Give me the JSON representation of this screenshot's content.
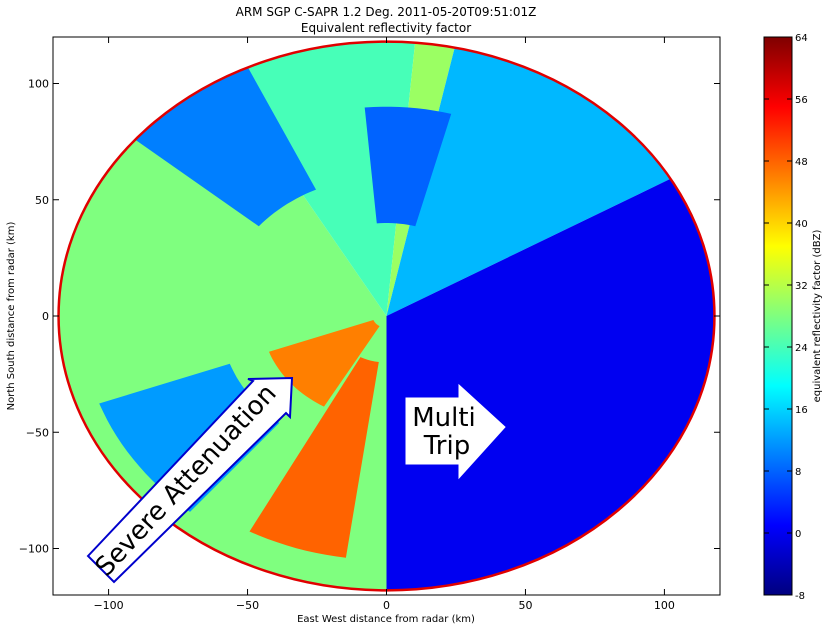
{
  "chart_data": {
    "type": "heatmap",
    "title": "ARM SGP C-SAPR 1.2 Deg. 2011-05-20T09:51:01Z",
    "subtitle": "Equivalent reflectivity factor",
    "xlabel": "East West distance from radar (km)",
    "ylabel": "North South distance from radar (km)",
    "xlim": [
      -120,
      120
    ],
    "ylim": [
      -120,
      120
    ],
    "x_ticks": [
      -100,
      -50,
      0,
      50,
      100
    ],
    "y_ticks": [
      -100,
      -50,
      0,
      50,
      100
    ],
    "x_tick_labels": [
      "−100",
      "−50",
      "0",
      "50",
      "100"
    ],
    "y_tick_labels": [
      "−100",
      "−50",
      "0",
      "50",
      "100"
    ],
    "range_km": 118,
    "colorbar": {
      "label": "equivalent reflectivity factor (dBZ)",
      "min": -8,
      "max": 64,
      "ticks": [
        -8,
        0,
        8,
        16,
        24,
        32,
        40,
        48,
        56,
        64
      ],
      "colormap": "jet",
      "colors": [
        "#00007f",
        "#0000ff",
        "#007fff",
        "#00ffff",
        "#7fff7f",
        "#ffff00",
        "#ff7f00",
        "#ff0000",
        "#7f0000"
      ]
    },
    "regions": [
      {
        "name": "west-sector",
        "start_deg": 180,
        "end_deg": 330,
        "inner_km": 0,
        "outer_km": 118,
        "dbz": 28
      },
      {
        "name": "northwest-sector",
        "start_deg": 330,
        "end_deg": 365,
        "inner_km": 0,
        "outer_km": 118,
        "dbz": 24
      },
      {
        "name": "north-sector",
        "start_deg": 365,
        "end_deg": 372,
        "inner_km": 0,
        "outer_km": 118,
        "dbz": 30
      },
      {
        "name": "northeast-sector",
        "start_deg": 372,
        "end_deg": 420,
        "inner_km": 0,
        "outer_km": 118,
        "dbz": 14
      },
      {
        "name": "east-sector",
        "start_deg": 60,
        "end_deg": 180,
        "inner_km": 0,
        "outer_km": 118,
        "dbz": 0
      },
      {
        "name": "storm-line-north",
        "start_deg": 210,
        "end_deg": 250,
        "inner_km": 5,
        "outer_km": 45,
        "dbz": 46
      },
      {
        "name": "storm-line-south",
        "start_deg": 188,
        "end_deg": 208,
        "inner_km": 20,
        "outer_km": 105,
        "dbz": 48
      },
      {
        "name": "northwest-blue-patch",
        "start_deg": 310,
        "end_deg": 335,
        "inner_km": 60,
        "outer_km": 118,
        "dbz": 10
      },
      {
        "name": "north-blue-patch",
        "start_deg": 355,
        "end_deg": 375,
        "inner_km": 40,
        "outer_km": 90,
        "dbz": 8
      },
      {
        "name": "southwest-blue-patch",
        "start_deg": 220,
        "end_deg": 250,
        "inner_km": 60,
        "outer_km": 110,
        "dbz": 12
      }
    ],
    "annotations": [
      {
        "text": "Severe Attenuation",
        "kind": "arrow"
      },
      {
        "lines": [
          "Multi",
          "Trip"
        ],
        "kind": "arrow"
      }
    ]
  }
}
